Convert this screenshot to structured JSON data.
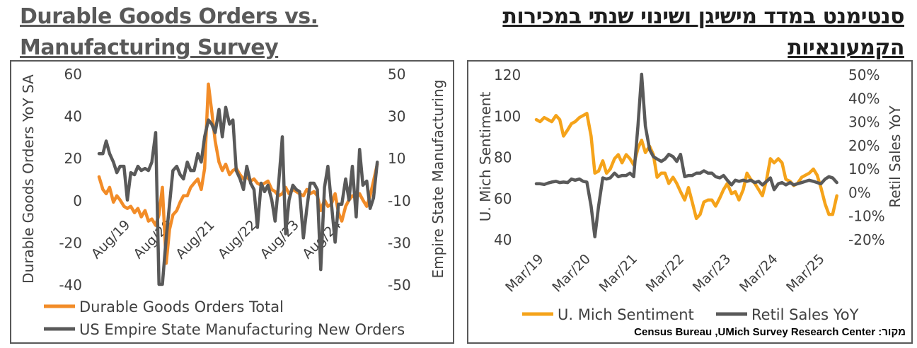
{
  "left_title": "Durable Goods Orders vs. Manufacturing Survey",
  "right_title": "סנטימנט במדד מישיגן ושינוי שנתי במכירות הקמעונאיות",
  "source": "מקור: Census Bureau ,UMich Survey Research Center",
  "colors": {
    "orange": "#F28C28",
    "gold": "#F5A31A",
    "gray": "#595959",
    "frame": "#595959"
  },
  "chart_data": [
    {
      "type": "line",
      "title": "Durable Goods Orders vs. Manufacturing Survey",
      "ylabel": "Durable Goods Orders YoY SA",
      "y2label": "Empire State Manufacturing",
      "ylim": [
        -40,
        60
      ],
      "y2lim": [
        -50,
        50
      ],
      "yticks": [
        "60",
        "40",
        "20",
        "0",
        "-20",
        "-40"
      ],
      "y2ticks": [
        "50",
        "30",
        "10",
        "-10",
        "-30",
        "-50"
      ],
      "xlim": [
        2018.83,
        2025.5
      ],
      "xticks": [
        {
          "x": 2019.58,
          "label": "Aug/19"
        },
        {
          "x": 2020.58,
          "label": "Aug/20"
        },
        {
          "x": 2021.58,
          "label": "Aug/21"
        },
        {
          "x": 2022.58,
          "label": "Aug/22"
        },
        {
          "x": 2023.58,
          "label": "Aug/23"
        },
        {
          "x": 2024.58,
          "label": "Aug/24"
        }
      ],
      "legend_position": "bottom-left",
      "series": [
        {
          "name": "Durable Goods Orders Total",
          "axis": "left",
          "color": "#F28C28",
          "x": [
            2018.83,
            2018.92,
            2019.0,
            2019.08,
            2019.17,
            2019.25,
            2019.33,
            2019.42,
            2019.5,
            2019.58,
            2019.67,
            2019.75,
            2019.83,
            2019.92,
            2020.0,
            2020.08,
            2020.17,
            2020.25,
            2020.33,
            2020.42,
            2020.5,
            2020.58,
            2020.67,
            2020.75,
            2020.83,
            2020.92,
            2021.0,
            2021.08,
            2021.17,
            2021.25,
            2021.33,
            2021.42,
            2021.5,
            2021.58,
            2021.67,
            2021.75,
            2021.83,
            2021.92,
            2022.0,
            2022.08,
            2022.17,
            2022.25,
            2022.33,
            2022.42,
            2022.5,
            2022.58,
            2022.67,
            2022.75,
            2022.83,
            2022.92,
            2023.0,
            2023.08,
            2023.17,
            2023.25,
            2023.33,
            2023.42,
            2023.5,
            2023.58,
            2023.67,
            2023.75,
            2023.83,
            2023.92,
            2024.0,
            2024.08,
            2024.17,
            2024.25,
            2024.33,
            2024.42,
            2024.5,
            2024.58,
            2024.67,
            2024.75,
            2024.83,
            2024.92,
            2025.0,
            2025.08,
            2025.17,
            2025.25,
            2025.33,
            2025.42
          ],
          "values": [
            11,
            5,
            3,
            6,
            -1,
            2,
            0,
            -3,
            -4,
            -3,
            -6,
            -4,
            -8,
            -5,
            -10,
            -9,
            -12,
            -7,
            6,
            -30,
            -14,
            -7,
            -5,
            -1,
            2,
            2,
            6,
            8,
            10,
            5,
            15,
            55,
            42,
            28,
            18,
            14,
            17,
            12,
            14,
            15,
            12,
            10,
            11,
            9,
            10,
            8,
            7,
            8,
            9,
            5,
            4,
            2,
            3,
            6,
            3,
            5,
            4,
            3,
            2,
            5,
            3,
            4,
            2,
            -5,
            0,
            -3,
            -2,
            3,
            -6,
            -10,
            -3,
            0,
            2,
            1,
            3,
            0,
            -3,
            2,
            9,
            17
          ]
        },
        {
          "name": "US Empire State Manufacturing New Orders",
          "axis": "right",
          "color": "#595959",
          "x": [
            2018.83,
            2018.92,
            2019.0,
            2019.08,
            2019.17,
            2019.25,
            2019.33,
            2019.42,
            2019.5,
            2019.58,
            2019.67,
            2019.75,
            2019.83,
            2019.92,
            2020.0,
            2020.08,
            2020.17,
            2020.25,
            2020.33,
            2020.42,
            2020.5,
            2020.58,
            2020.67,
            2020.75,
            2020.83,
            2020.92,
            2021.0,
            2021.08,
            2021.17,
            2021.25,
            2021.33,
            2021.42,
            2021.5,
            2021.58,
            2021.67,
            2021.75,
            2021.83,
            2021.92,
            2022.0,
            2022.08,
            2022.17,
            2022.25,
            2022.33,
            2022.42,
            2022.5,
            2022.58,
            2022.67,
            2022.75,
            2022.83,
            2022.92,
            2023.0,
            2023.08,
            2023.17,
            2023.25,
            2023.33,
            2023.42,
            2023.5,
            2023.58,
            2023.67,
            2023.75,
            2023.83,
            2023.92,
            2024.0,
            2024.08,
            2024.17,
            2024.25,
            2024.33,
            2024.42,
            2024.5,
            2024.58,
            2024.67,
            2024.75,
            2024.83,
            2024.92,
            2025.0,
            2025.08,
            2025.17,
            2025.25,
            2025.33,
            2025.42
          ],
          "values": [
            12,
            12,
            18,
            12,
            8,
            3,
            6,
            6,
            -10,
            3,
            2,
            6,
            4,
            5,
            4,
            8,
            22,
            -50,
            -50,
            -28,
            -12,
            4,
            6,
            2,
            0,
            8,
            4,
            4,
            12,
            8,
            20,
            28,
            26,
            22,
            33,
            20,
            34,
            26,
            28,
            4,
            0,
            -5,
            6,
            -2,
            -5,
            -23,
            -2,
            -6,
            -3,
            -10,
            -20,
            -3,
            20,
            -26,
            -10,
            -3,
            -5,
            -6,
            -28,
            -14,
            -2,
            -2,
            -5,
            -43,
            -4,
            6,
            -11,
            -30,
            -12,
            -12,
            0,
            -10,
            6,
            -18,
            14,
            -3,
            -1,
            -14,
            -9,
            8
          ]
        }
      ]
    },
    {
      "type": "line",
      "title": "סנטימנט במדד מישיגן ושינוי שנתי במכירות הקמעונאיות",
      "ylabel": "U. Mich Sentiment",
      "y2label": "Retil Sales YoY",
      "ylim": [
        40,
        120
      ],
      "y2lim": [
        -20,
        50
      ],
      "yticks": [
        "120",
        "100",
        "80",
        "60",
        "40"
      ],
      "y2ticks": [
        "50%",
        "40%",
        "30%",
        "20%",
        "10%",
        "0%",
        "-10%",
        "-20%"
      ],
      "xlim": [
        2019.0,
        2025.5
      ],
      "xticks": [
        {
          "x": 2019.17,
          "label": "Mar/19"
        },
        {
          "x": 2020.17,
          "label": "Mar/20"
        },
        {
          "x": 2021.17,
          "label": "Mar/21"
        },
        {
          "x": 2022.17,
          "label": "Mar/22"
        },
        {
          "x": 2023.17,
          "label": "Mar/23"
        },
        {
          "x": 2024.17,
          "label": "Mar/24"
        },
        {
          "x": 2025.17,
          "label": "Mar/25"
        }
      ],
      "legend_position": "bottom",
      "series": [
        {
          "name": "U. Mich Sentiment",
          "axis": "left",
          "color": "#F5A31A",
          "x": [
            2019.0,
            2019.08,
            2019.17,
            2019.25,
            2019.33,
            2019.42,
            2019.5,
            2019.58,
            2019.67,
            2019.75,
            2019.83,
            2019.92,
            2020.0,
            2020.08,
            2020.17,
            2020.25,
            2020.33,
            2020.42,
            2020.5,
            2020.58,
            2020.67,
            2020.75,
            2020.83,
            2020.92,
            2021.0,
            2021.08,
            2021.17,
            2021.25,
            2021.33,
            2021.42,
            2021.5,
            2021.58,
            2021.67,
            2021.75,
            2021.83,
            2021.92,
            2022.0,
            2022.08,
            2022.17,
            2022.25,
            2022.33,
            2022.42,
            2022.5,
            2022.58,
            2022.67,
            2022.75,
            2022.83,
            2022.92,
            2023.0,
            2023.08,
            2023.17,
            2023.25,
            2023.33,
            2023.42,
            2023.5,
            2023.58,
            2023.67,
            2023.75,
            2023.83,
            2023.92,
            2024.0,
            2024.08,
            2024.17,
            2024.25,
            2024.33,
            2024.42,
            2024.5,
            2024.58,
            2024.67,
            2024.75,
            2024.83,
            2024.92,
            2025.0,
            2025.08,
            2025.17,
            2025.25,
            2025.33,
            2025.42
          ],
          "values": [
            98,
            97,
            99,
            98,
            97,
            100,
            98,
            90,
            93,
            96,
            97,
            99,
            100,
            101,
            90,
            72,
            73,
            78,
            72,
            74,
            79,
            81,
            77,
            81,
            79,
            76,
            84,
            88,
            82,
            85,
            81,
            70,
            72,
            72,
            67,
            70,
            67,
            63,
            59,
            65,
            58,
            50,
            52,
            58,
            59,
            59,
            56,
            60,
            64,
            67,
            62,
            63,
            59,
            64,
            72,
            69,
            67,
            64,
            61,
            69,
            79,
            77,
            79,
            77,
            69,
            68,
            66,
            67,
            70,
            71,
            72,
            74,
            71,
            65,
            57,
            52,
            52,
            61
          ]
        },
        {
          "name": "Retil Sales YoY",
          "axis": "right",
          "color": "#595959",
          "x": [
            2019.0,
            2019.08,
            2019.17,
            2019.25,
            2019.33,
            2019.42,
            2019.5,
            2019.58,
            2019.67,
            2019.75,
            2019.83,
            2019.92,
            2020.0,
            2020.08,
            2020.17,
            2020.25,
            2020.33,
            2020.42,
            2020.5,
            2020.58,
            2020.67,
            2020.75,
            2020.83,
            2020.92,
            2021.0,
            2021.08,
            2021.17,
            2021.25,
            2021.33,
            2021.42,
            2021.5,
            2021.58,
            2021.67,
            2021.75,
            2021.83,
            2021.92,
            2022.0,
            2022.08,
            2022.17,
            2022.25,
            2022.33,
            2022.42,
            2022.5,
            2022.58,
            2022.67,
            2022.75,
            2022.83,
            2022.92,
            2023.0,
            2023.08,
            2023.17,
            2023.25,
            2023.33,
            2023.42,
            2023.5,
            2023.58,
            2023.67,
            2023.75,
            2023.83,
            2023.92,
            2024.0,
            2024.08,
            2024.17,
            2024.25,
            2024.33,
            2024.42,
            2024.5,
            2024.58,
            2024.67,
            2024.75,
            2024.83,
            2024.92,
            2025.0,
            2025.08,
            2025.17,
            2025.25,
            2025.33,
            2025.42
          ],
          "values": [
            3.5,
            3.5,
            3.2,
            3.8,
            4.2,
            4.5,
            4.0,
            4.2,
            4.0,
            5.5,
            5.0,
            5.5,
            4.5,
            4.2,
            -6.0,
            -19.0,
            -6.0,
            6.0,
            5.5,
            6.0,
            8.0,
            6.5,
            7.0,
            7.0,
            8.0,
            6.5,
            28.0,
            50.0,
            28.0,
            18.0,
            15.0,
            14.0,
            13.0,
            14.0,
            16.0,
            15.0,
            13.0,
            16.0,
            6.5,
            7.0,
            7.0,
            8.0,
            8.0,
            9.0,
            8.0,
            8.0,
            6.5,
            6.0,
            7.0,
            5.0,
            3.0,
            5.0,
            4.5,
            5.0,
            4.5,
            5.0,
            4.0,
            4.5,
            3.0,
            4.5,
            6.0,
            1.0,
            3.5,
            4.0,
            3.0,
            4.0,
            3.0,
            3.5,
            4.0,
            4.5,
            5.0,
            4.5,
            4.0,
            3.5,
            5.5,
            6.5,
            6.0,
            4.0
          ]
        }
      ]
    }
  ]
}
